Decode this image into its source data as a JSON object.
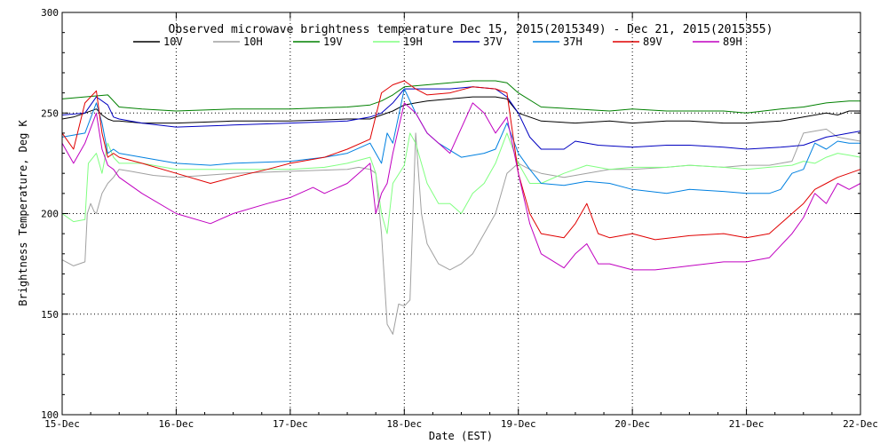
{
  "chart_data": {
    "type": "line",
    "title": "Observed microwave brightness temperature Dec 15, 2015(2015349) - Dec 21, 2015(2015355)",
    "xlabel": "Date (EST)",
    "ylabel": "Brightness Temperature, Deg K",
    "ylim": [
      100,
      300
    ],
    "y_ticks": [
      100,
      150,
      200,
      250,
      300
    ],
    "x_ticks": [
      {
        "x": 0,
        "label": "15-Dec"
      },
      {
        "x": 1,
        "label": "16-Dec"
      },
      {
        "x": 2,
        "label": "17-Dec"
      },
      {
        "x": 3,
        "label": "18-Dec"
      },
      {
        "x": 4,
        "label": "19-Dec"
      },
      {
        "x": 5,
        "label": "20-Dec"
      },
      {
        "x": 6,
        "label": "21-Dec"
      },
      {
        "x": 7,
        "label": "22-Dec"
      }
    ],
    "xlim": [
      0,
      7
    ],
    "grid": "dotted vertical at day boundaries, horizontal at 150/200/250",
    "legend_position": "top",
    "series": [
      {
        "name": "10V",
        "color": "#000000",
        "x": [
          0,
          0.1,
          0.2,
          0.3,
          0.35,
          0.4,
          0.45,
          0.5,
          0.7,
          1.0,
          1.5,
          2.0,
          2.5,
          2.7,
          2.8,
          2.9,
          3.0,
          3.1,
          3.2,
          3.4,
          3.6,
          3.8,
          3.9,
          4.0,
          4.2,
          4.5,
          4.8,
          5.0,
          5.3,
          5.5,
          5.8,
          6.0,
          6.3,
          6.5,
          6.7,
          6.8,
          6.9,
          7.0
        ],
        "y": [
          247,
          248,
          250,
          252,
          249,
          247,
          246,
          246,
          245,
          245,
          246,
          246,
          247,
          247,
          249,
          251,
          254,
          255,
          256,
          257,
          258,
          258,
          257,
          250,
          246,
          245,
          246,
          245,
          246,
          246,
          245,
          245,
          246,
          248,
          250,
          249,
          251,
          251
        ]
      },
      {
        "name": "10H",
        "color": "#a0a0a0",
        "x": [
          0,
          0.1,
          0.2,
          0.22,
          0.25,
          0.28,
          0.3,
          0.35,
          0.4,
          0.45,
          0.5,
          0.6,
          0.8,
          1.0,
          1.5,
          2.0,
          2.5,
          2.6,
          2.7,
          2.75,
          2.8,
          2.85,
          2.9,
          2.95,
          3.0,
          3.05,
          3.1,
          3.15,
          3.2,
          3.3,
          3.4,
          3.5,
          3.6,
          3.7,
          3.8,
          3.9,
          4.0,
          4.1,
          4.2,
          4.4,
          4.6,
          4.8,
          5.0,
          5.3,
          5.5,
          5.8,
          6.0,
          6.2,
          6.3,
          6.4,
          6.5,
          6.6,
          6.7,
          6.8,
          6.9,
          7.0
        ],
        "y": [
          177,
          174,
          176,
          200,
          205,
          201,
          200,
          210,
          215,
          218,
          222,
          221,
          219,
          218,
          220,
          221,
          222,
          223,
          222,
          220,
          190,
          145,
          140,
          155,
          154,
          157,
          240,
          200,
          185,
          175,
          172,
          175,
          180,
          190,
          200,
          220,
          225,
          222,
          220,
          218,
          220,
          222,
          222,
          223,
          224,
          223,
          224,
          224,
          225,
          226,
          240,
          241,
          242,
          238,
          237,
          236
        ]
      },
      {
        "name": "19V",
        "color": "#008000",
        "x": [
          0,
          0.2,
          0.4,
          0.5,
          0.7,
          1.0,
          1.5,
          2.0,
          2.5,
          2.7,
          2.8,
          2.9,
          3.0,
          3.2,
          3.4,
          3.6,
          3.8,
          3.9,
          4.0,
          4.2,
          4.5,
          4.8,
          5.0,
          5.3,
          5.5,
          5.8,
          6.0,
          6.3,
          6.5,
          6.7,
          6.9,
          7.0
        ],
        "y": [
          257,
          258,
          259,
          253,
          252,
          251,
          252,
          252,
          253,
          254,
          256,
          259,
          263,
          264,
          265,
          266,
          266,
          265,
          260,
          253,
          252,
          251,
          252,
          251,
          251,
          251,
          250,
          252,
          253,
          255,
          256,
          256
        ]
      },
      {
        "name": "19H",
        "color": "#80ff80",
        "x": [
          0,
          0.1,
          0.2,
          0.23,
          0.3,
          0.35,
          0.4,
          0.45,
          0.5,
          0.7,
          1.0,
          1.5,
          2.0,
          2.3,
          2.5,
          2.7,
          2.75,
          2.8,
          2.85,
          2.9,
          3.0,
          3.05,
          3.1,
          3.2,
          3.3,
          3.4,
          3.5,
          3.6,
          3.7,
          3.8,
          3.9,
          4.0,
          4.1,
          4.2,
          4.4,
          4.6,
          4.8,
          5.0,
          5.3,
          5.5,
          5.8,
          6.0,
          6.2,
          6.4,
          6.5,
          6.6,
          6.7,
          6.8,
          6.9,
          7.0
        ],
        "y": [
          200,
          196,
          197,
          225,
          230,
          220,
          235,
          228,
          225,
          225,
          222,
          222,
          222,
          223,
          225,
          228,
          220,
          200,
          190,
          215,
          224,
          240,
          235,
          215,
          205,
          205,
          200,
          210,
          215,
          225,
          240,
          225,
          215,
          215,
          220,
          224,
          222,
          223,
          223,
          224,
          223,
          222,
          223,
          224,
          226,
          225,
          228,
          230,
          229,
          228
        ]
      },
      {
        "name": "37V",
        "color": "#0000c0",
        "x": [
          0,
          0.2,
          0.3,
          0.4,
          0.45,
          0.5,
          0.7,
          1.0,
          1.5,
          2.0,
          2.5,
          2.7,
          2.8,
          2.9,
          3.0,
          3.2,
          3.4,
          3.6,
          3.8,
          3.9,
          4.0,
          4.1,
          4.2,
          4.4,
          4.5,
          4.7,
          5.0,
          5.3,
          5.5,
          5.8,
          6.0,
          6.3,
          6.5,
          6.6,
          6.7,
          6.8,
          6.9,
          7.0
        ],
        "y": [
          249,
          250,
          258,
          254,
          248,
          247,
          245,
          243,
          244,
          245,
          246,
          248,
          250,
          255,
          262,
          262,
          262,
          263,
          262,
          258,
          250,
          238,
          232,
          232,
          236,
          234,
          233,
          234,
          234,
          233,
          232,
          233,
          234,
          236,
          238,
          239,
          240,
          241
        ]
      },
      {
        "name": "37H",
        "color": "#0080e0",
        "x": [
          0,
          0.2,
          0.3,
          0.35,
          0.4,
          0.45,
          0.5,
          0.7,
          1.0,
          1.3,
          1.5,
          2.0,
          2.3,
          2.5,
          2.7,
          2.75,
          2.8,
          2.85,
          2.9,
          3.0,
          3.1,
          3.2,
          3.3,
          3.5,
          3.7,
          3.8,
          3.9,
          4.0,
          4.1,
          4.2,
          4.4,
          4.6,
          4.8,
          5.0,
          5.3,
          5.5,
          5.8,
          6.0,
          6.2,
          6.3,
          6.4,
          6.5,
          6.6,
          6.7,
          6.8,
          6.9,
          7.0
        ],
        "y": [
          238,
          240,
          255,
          245,
          230,
          232,
          230,
          228,
          225,
          224,
          225,
          226,
          228,
          230,
          235,
          230,
          225,
          240,
          235,
          262,
          250,
          240,
          235,
          228,
          230,
          232,
          245,
          230,
          222,
          215,
          214,
          216,
          215,
          212,
          210,
          212,
          211,
          210,
          210,
          212,
          220,
          222,
          235,
          232,
          236,
          235,
          235
        ]
      },
      {
        "name": "89V",
        "color": "#e00000",
        "x": [
          0,
          0.1,
          0.2,
          0.3,
          0.35,
          0.4,
          0.45,
          0.5,
          0.7,
          1.0,
          1.3,
          1.5,
          1.8,
          2.0,
          2.3,
          2.5,
          2.7,
          2.8,
          2.9,
          3.0,
          3.1,
          3.2,
          3.4,
          3.6,
          3.8,
          3.9,
          4.0,
          4.1,
          4.2,
          4.4,
          4.5,
          4.6,
          4.7,
          4.8,
          5.0,
          5.2,
          5.5,
          5.8,
          6.0,
          6.2,
          6.4,
          6.5,
          6.6,
          6.7,
          6.8,
          6.9,
          7.0
        ],
        "y": [
          240,
          232,
          255,
          261,
          240,
          228,
          230,
          228,
          225,
          220,
          215,
          218,
          222,
          225,
          228,
          232,
          237,
          260,
          264,
          266,
          262,
          259,
          260,
          263,
          262,
          260,
          220,
          200,
          190,
          188,
          195,
          205,
          190,
          188,
          190,
          187,
          189,
          190,
          188,
          190,
          200,
          205,
          212,
          215,
          218,
          220,
          222
        ]
      },
      {
        "name": "89H",
        "color": "#c000c0",
        "x": [
          0,
          0.1,
          0.2,
          0.3,
          0.35,
          0.4,
          0.45,
          0.5,
          0.7,
          1.0,
          1.3,
          1.5,
          1.8,
          2.0,
          2.2,
          2.3,
          2.5,
          2.7,
          2.75,
          2.8,
          2.85,
          2.9,
          3.0,
          3.1,
          3.2,
          3.4,
          3.6,
          3.7,
          3.8,
          3.9,
          4.0,
          4.1,
          4.2,
          4.4,
          4.5,
          4.6,
          4.7,
          4.8,
          5.0,
          5.2,
          5.5,
          5.8,
          6.0,
          6.2,
          6.4,
          6.5,
          6.6,
          6.7,
          6.8,
          6.9,
          7.0
        ],
        "y": [
          235,
          225,
          235,
          250,
          232,
          224,
          222,
          218,
          210,
          200,
          195,
          200,
          205,
          208,
          213,
          210,
          215,
          225,
          200,
          210,
          215,
          230,
          255,
          250,
          240,
          230,
          255,
          250,
          240,
          248,
          220,
          195,
          180,
          173,
          180,
          185,
          175,
          175,
          172,
          172,
          174,
          176,
          176,
          178,
          190,
          198,
          210,
          205,
          215,
          212,
          215
        ]
      }
    ]
  }
}
